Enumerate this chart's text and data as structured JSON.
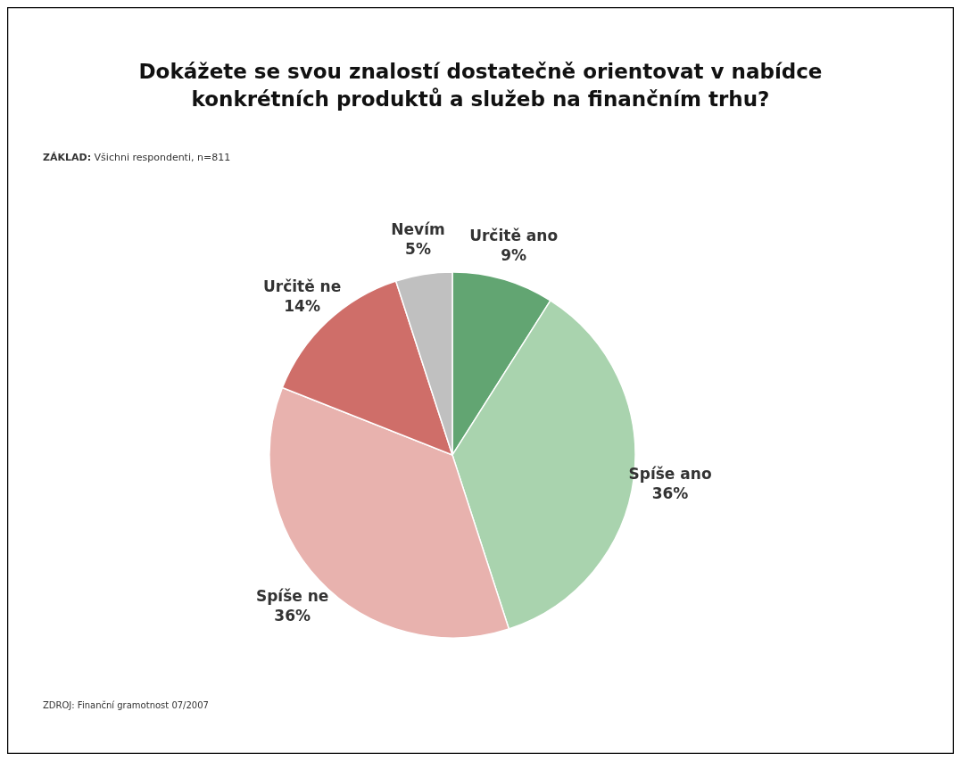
{
  "chart_data": {
    "type": "pie",
    "title": "Dokážete se svou znalostí dostatečně orientovat v nabídce\nkonkrétních produktů a služeb na finančním trhu?",
    "subtitle": "ZÁKLAD: Všichni respondenti, n=811",
    "categories": [
      "Určitě ano",
      "Spíše ano",
      "Spíše ne",
      "Určitě ne",
      "Nevím"
    ],
    "values": [
      9,
      36,
      36,
      14,
      5
    ],
    "colors": [
      "#62a572",
      "#a9d3ae",
      "#e8b2ae",
      "#cf6e69",
      "#c0c0c0"
    ],
    "value_labels": [
      "9%",
      "36%",
      "36%",
      "14%",
      "5%"
    ],
    "annotations": [
      "ZDROJ: Finanční gramotnost 07/2007"
    ]
  }
}
